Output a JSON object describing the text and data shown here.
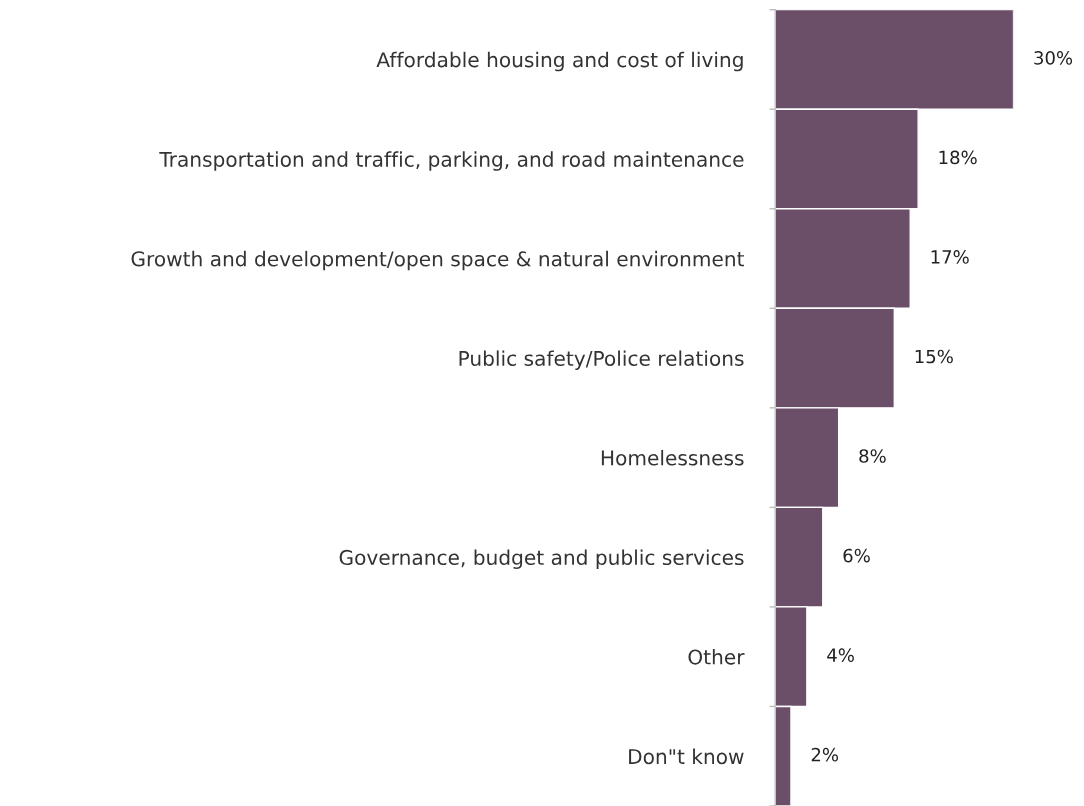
{
  "chart_data": {
    "type": "bar",
    "orientation": "horizontal",
    "categories": [
      "Affordable housing and cost of living",
      "Transportation and traffic, parking, and road maintenance",
      "Growth and development/open space & natural environment",
      "Public safety/Police relations",
      "Homelessness",
      "Governance, budget and public services",
      "Other",
      "Don\"t know"
    ],
    "values": [
      30,
      18,
      17,
      15,
      8,
      6,
      4,
      2
    ],
    "value_labels": [
      "30%",
      "18%",
      "17%",
      "15%",
      "8%",
      "6%",
      "4%",
      "2%"
    ],
    "color": "#6b4e68",
    "grid": false,
    "legend": false
  }
}
